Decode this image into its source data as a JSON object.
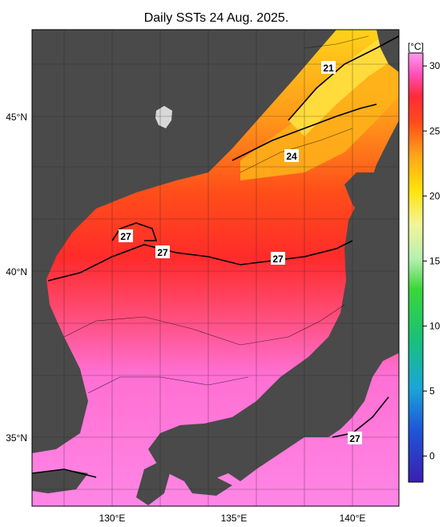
{
  "title": "Daily SSTs 24 Aug. 2025.",
  "map": {
    "lat_labels": [
      "45°N",
      "40°N",
      "35°N"
    ],
    "lon_labels": [
      "130°E",
      "135°E",
      "140°E"
    ],
    "contour_labels": [
      "21",
      "24",
      "27",
      "27",
      "27",
      "27"
    ]
  },
  "colorbar": {
    "unit": "[°C]",
    "ticks": [
      "30",
      "25",
      "20",
      "15",
      "10",
      "5",
      "0"
    ],
    "range": [
      -2,
      31
    ]
  },
  "colors": {
    "land": "#4a4a4a",
    "warm": "#ff3a3a",
    "hot": "#ff7de0"
  }
}
